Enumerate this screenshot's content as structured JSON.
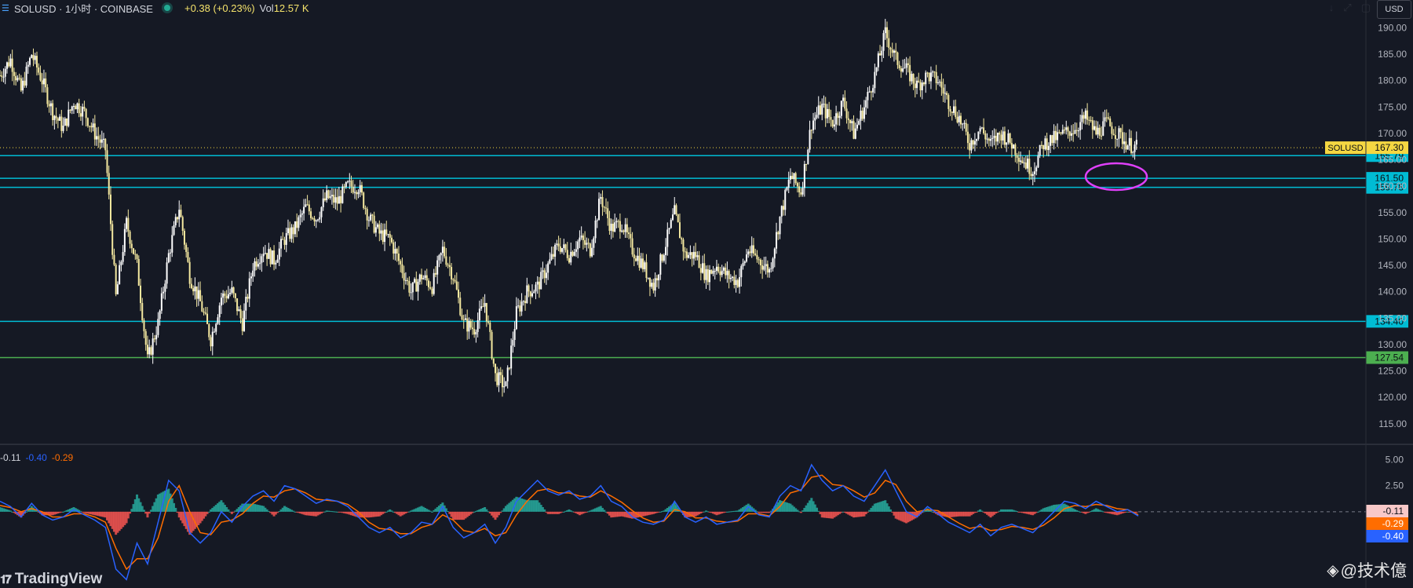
{
  "header": {
    "symbol": "SOLUSD · 1小时 · COINBASE",
    "change": "+0.38 (+0.23%)",
    "volume_label": "Vol",
    "volume_value": "12.57 K",
    "currency": "USD"
  },
  "macd_header": {
    "v1": "-0.11",
    "v2": "-0.40",
    "v3": "-0.29"
  },
  "watermark": "@技术億",
  "logo": "TradingView",
  "colors": {
    "background": "#151924",
    "candle": "#ffffff",
    "support_line": "#00bcd4",
    "green_line": "#4caf50",
    "last_price_label": "#f5d742",
    "macd_line": "#2962ff",
    "signal_line": "#ff6d00",
    "hist_up": "#26a69a",
    "hist_down": "#ef5350",
    "annotation": "#e040fb"
  },
  "chart_data": {
    "type": "line",
    "title": "SOLUSD · 1小时 · COINBASE",
    "ylim": [
      112,
      192
    ],
    "yticks": [
      "190.00",
      "185.00",
      "180.00",
      "175.00",
      "170.00",
      "165.00",
      "160.00",
      "155.00",
      "150.00",
      "145.00",
      "140.00",
      "135.00",
      "130.00",
      "125.00",
      "120.00",
      "115.00"
    ],
    "last_price": {
      "label": "SOLUSD",
      "value": "167.30"
    },
    "horizontal_levels": [
      {
        "value": "165.79",
        "color": "#00bcd4"
      },
      {
        "value": "161.50",
        "color": "#00bcd4"
      },
      {
        "value": "159.78",
        "color": "#00bcd4"
      },
      {
        "value": "134.40",
        "color": "#00bcd4"
      },
      {
        "value": "127.54",
        "color": "#4caf50"
      }
    ],
    "price_series": {
      "name": "SOLUSD",
      "values": [
        181,
        184,
        178,
        185,
        180,
        174,
        171,
        176,
        174,
        170,
        167,
        139,
        153,
        145,
        127,
        134,
        147,
        156,
        143,
        138,
        131,
        139,
        140,
        134,
        145,
        148,
        146,
        150,
        152,
        156,
        154,
        158,
        157,
        160,
        160,
        154,
        151,
        150,
        145,
        140,
        143,
        141,
        148,
        143,
        134,
        133,
        138,
        124,
        122,
        136,
        140,
        141,
        145,
        149,
        147,
        150,
        148,
        158,
        152,
        153,
        148,
        145,
        141,
        148,
        155,
        147,
        147,
        143,
        145,
        143,
        142,
        148,
        146,
        144,
        154,
        162,
        159,
        172,
        175,
        172,
        176,
        170,
        175,
        181,
        189,
        184,
        182,
        179,
        181,
        180,
        176,
        173,
        168,
        171,
        168,
        170,
        168,
        165,
        163,
        168,
        169,
        170,
        171,
        173,
        170,
        172,
        170,
        168,
        167.3
      ]
    },
    "macd": {
      "ylim": [
        -7,
        6
      ],
      "yticks": [
        "5.00",
        "2.50"
      ],
      "labels": {
        "macd": "-0.40",
        "signal": "-0.29",
        "hist": "-0.11"
      },
      "macd_values": [
        1,
        0.5,
        -0.5,
        0.8,
        -0.3,
        -0.8,
        -0.5,
        0.2,
        -0.3,
        -0.8,
        -1.5,
        -5.5,
        -6.5,
        -3,
        -5,
        -1,
        3,
        2,
        -2,
        -3,
        -2,
        0,
        -1,
        0.5,
        1.5,
        2,
        1,
        2.5,
        2.2,
        1.5,
        0.8,
        1.2,
        1,
        0.5,
        -0.5,
        -1.5,
        -2,
        -1.5,
        -2.5,
        -2,
        -1,
        -1.2,
        0.5,
        -1.5,
        -2.5,
        -2,
        -1.2,
        -3,
        -1.5,
        1,
        2,
        3,
        2,
        1.6,
        2,
        1.2,
        1.5,
        2.5,
        1,
        0.5,
        -0.5,
        -1,
        -1.2,
        -0.8,
        1,
        -0.5,
        -1,
        -0.5,
        -1.2,
        -1,
        -0.8,
        0.5,
        -0.3,
        -0.5,
        1.5,
        2.5,
        2,
        4.5,
        3,
        2,
        2.5,
        1.5,
        1,
        2.5,
        4,
        2,
        0,
        -0.5,
        0.5,
        -0.2,
        -1,
        -1.5,
        -2,
        -1.2,
        -2.3,
        -1.5,
        -1.2,
        -1.6,
        -2,
        -1,
        0,
        1,
        0.8,
        0.3,
        1,
        0.5,
        0,
        0.2,
        -0.4
      ],
      "signal_values": [
        0.6,
        0.4,
        0,
        0.3,
        0,
        -0.5,
        -0.5,
        -0.2,
        -0.2,
        -0.5,
        -1,
        -3.5,
        -5.5,
        -4.5,
        -4.5,
        -2.5,
        1,
        2.5,
        0,
        -2,
        -2.2,
        -1,
        -0.8,
        -0.2,
        0.8,
        1.5,
        1.4,
        2,
        2.2,
        1.8,
        1.2,
        1.1,
        1,
        0.7,
        0,
        -1,
        -1.6,
        -1.7,
        -2.1,
        -2.1,
        -1.5,
        -1.2,
        -0.3,
        -0.8,
        -1.8,
        -2,
        -1.6,
        -2.3,
        -2,
        -0.3,
        1,
        2,
        2.2,
        1.8,
        1.8,
        1.5,
        1.4,
        2,
        1.5,
        0.9,
        0.1,
        -0.6,
        -1,
        -0.9,
        0.2,
        0,
        -0.6,
        -0.6,
        -0.9,
        -1,
        -0.9,
        -0.2,
        -0.2,
        -0.4,
        0.5,
        1.8,
        2.1,
        3.3,
        3.5,
        2.6,
        2.5,
        2,
        1.4,
        1.8,
        3,
        2.6,
        1,
        0,
        0.2,
        0.1,
        -0.5,
        -1.1,
        -1.6,
        -1.4,
        -1.8,
        -1.7,
        -1.4,
        -1.5,
        -1.7,
        -1.3,
        -0.6,
        0.3,
        0.6,
        0.5,
        0.7,
        0.6,
        0.3,
        0.2,
        -0.29
      ]
    }
  }
}
